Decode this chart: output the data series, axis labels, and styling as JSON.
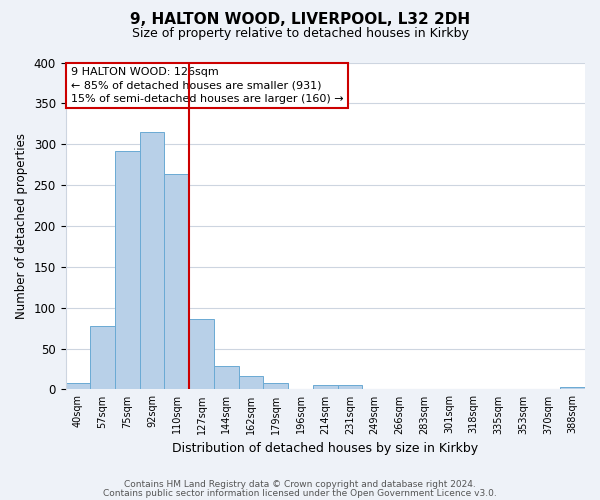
{
  "title": "9, HALTON WOOD, LIVERPOOL, L32 2DH",
  "subtitle": "Size of property relative to detached houses in Kirkby",
  "xlabel": "Distribution of detached houses by size in Kirkby",
  "ylabel": "Number of detached properties",
  "bin_labels": [
    "40sqm",
    "57sqm",
    "75sqm",
    "92sqm",
    "110sqm",
    "127sqm",
    "144sqm",
    "162sqm",
    "179sqm",
    "196sqm",
    "214sqm",
    "231sqm",
    "249sqm",
    "266sqm",
    "283sqm",
    "301sqm",
    "318sqm",
    "335sqm",
    "353sqm",
    "370sqm",
    "388sqm"
  ],
  "bar_heights": [
    8,
    77,
    292,
    315,
    264,
    86,
    29,
    16,
    8,
    0,
    5,
    5,
    0,
    0,
    0,
    0,
    0,
    0,
    0,
    0,
    3
  ],
  "bar_color": "#b8d0e8",
  "bar_edge_color": "#6aaad4",
  "annotation_title": "9 HALTON WOOD: 126sqm",
  "annotation_line1": "← 85% of detached houses are smaller (931)",
  "annotation_line2": "15% of semi-detached houses are larger (160) →",
  "annotation_box_color": "#ffffff",
  "annotation_border_color": "#cc0000",
  "vline_color": "#cc0000",
  "vline_x_index": 5,
  "ylim": [
    0,
    400
  ],
  "yticks": [
    0,
    50,
    100,
    150,
    200,
    250,
    300,
    350,
    400
  ],
  "footer1": "Contains HM Land Registry data © Crown copyright and database right 2024.",
  "footer2": "Contains public sector information licensed under the Open Government Licence v3.0.",
  "background_color": "#eef2f8",
  "plot_bg_color": "#ffffff",
  "grid_color": "#cdd5e0"
}
